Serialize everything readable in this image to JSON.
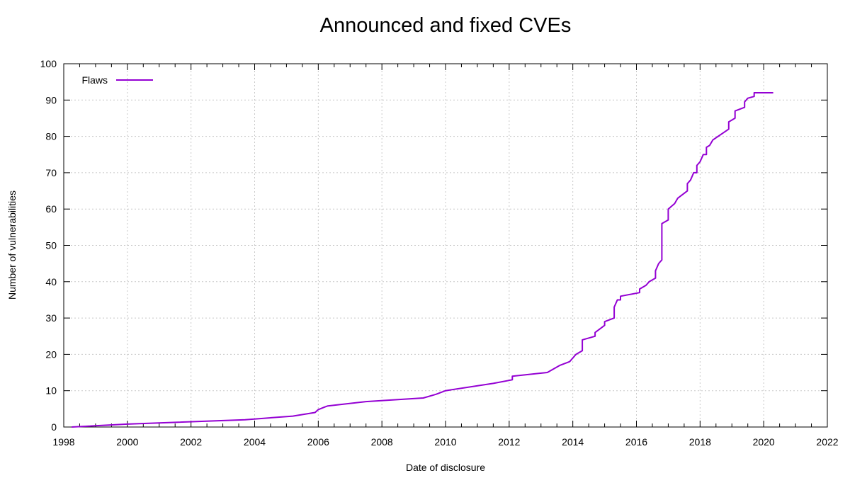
{
  "chart_data": {
    "type": "line",
    "title": "Announced and fixed CVEs",
    "xlabel": "Date of disclosure",
    "ylabel": "Number of vulnerabilities",
    "xlim": [
      1998,
      2022
    ],
    "ylim": [
      0,
      100
    ],
    "x_ticks": [
      1998,
      2000,
      2002,
      2004,
      2006,
      2008,
      2010,
      2012,
      2014,
      2016,
      2018,
      2020,
      2022
    ],
    "y_ticks": [
      0,
      10,
      20,
      30,
      40,
      50,
      60,
      70,
      80,
      90,
      100
    ],
    "grid": true,
    "legend_position": "top-left",
    "color": "#9400d3",
    "series": [
      {
        "name": "Flaws",
        "points": [
          [
            1998.25,
            0
          ],
          [
            2000.0,
            0.8
          ],
          [
            2003.7,
            2.0
          ],
          [
            2005.2,
            3.0
          ],
          [
            2005.9,
            4.0
          ],
          [
            2006.0,
            4.8
          ],
          [
            2006.2,
            5.5
          ],
          [
            2006.3,
            5.8
          ],
          [
            2007.5,
            7.0
          ],
          [
            2009.3,
            8.0
          ],
          [
            2009.7,
            9.0
          ],
          [
            2010.0,
            10.0
          ],
          [
            2011.5,
            12.0
          ],
          [
            2012.1,
            13.0
          ],
          [
            2012.1,
            14.0
          ],
          [
            2013.2,
            15.0
          ],
          [
            2013.6,
            17.0
          ],
          [
            2013.9,
            18.0
          ],
          [
            2014.1,
            20.0
          ],
          [
            2014.3,
            21.0
          ],
          [
            2014.3,
            24.0
          ],
          [
            2014.7,
            25.0
          ],
          [
            2014.7,
            26.0
          ],
          [
            2015.0,
            28.0
          ],
          [
            2015.0,
            29.0
          ],
          [
            2015.3,
            30.0
          ],
          [
            2015.3,
            33.0
          ],
          [
            2015.4,
            35.0
          ],
          [
            2015.5,
            35.0
          ],
          [
            2015.5,
            36.0
          ],
          [
            2016.1,
            37.0
          ],
          [
            2016.1,
            38.0
          ],
          [
            2016.3,
            39.0
          ],
          [
            2016.4,
            40.0
          ],
          [
            2016.6,
            41.0
          ],
          [
            2016.6,
            43.0
          ],
          [
            2016.7,
            45.0
          ],
          [
            2016.8,
            46.0
          ],
          [
            2016.8,
            56.0
          ],
          [
            2017.0,
            57.0
          ],
          [
            2017.0,
            60.0
          ],
          [
            2017.2,
            61.5
          ],
          [
            2017.3,
            63.0
          ],
          [
            2017.6,
            65.0
          ],
          [
            2017.6,
            67.0
          ],
          [
            2017.7,
            68.0
          ],
          [
            2017.8,
            70.0
          ],
          [
            2017.9,
            70.0
          ],
          [
            2017.9,
            72.0
          ],
          [
            2018.0,
            73.0
          ],
          [
            2018.1,
            75.0
          ],
          [
            2018.2,
            75.0
          ],
          [
            2018.2,
            77.0
          ],
          [
            2018.3,
            77.5
          ],
          [
            2018.4,
            79.0
          ],
          [
            2018.9,
            82.0
          ],
          [
            2018.9,
            84.0
          ],
          [
            2019.1,
            85.0
          ],
          [
            2019.1,
            87.0
          ],
          [
            2019.4,
            88.0
          ],
          [
            2019.4,
            89.5
          ],
          [
            2019.5,
            90.5
          ],
          [
            2019.7,
            91.0
          ],
          [
            2019.7,
            92.0
          ],
          [
            2020.3,
            92.0
          ]
        ]
      }
    ]
  }
}
